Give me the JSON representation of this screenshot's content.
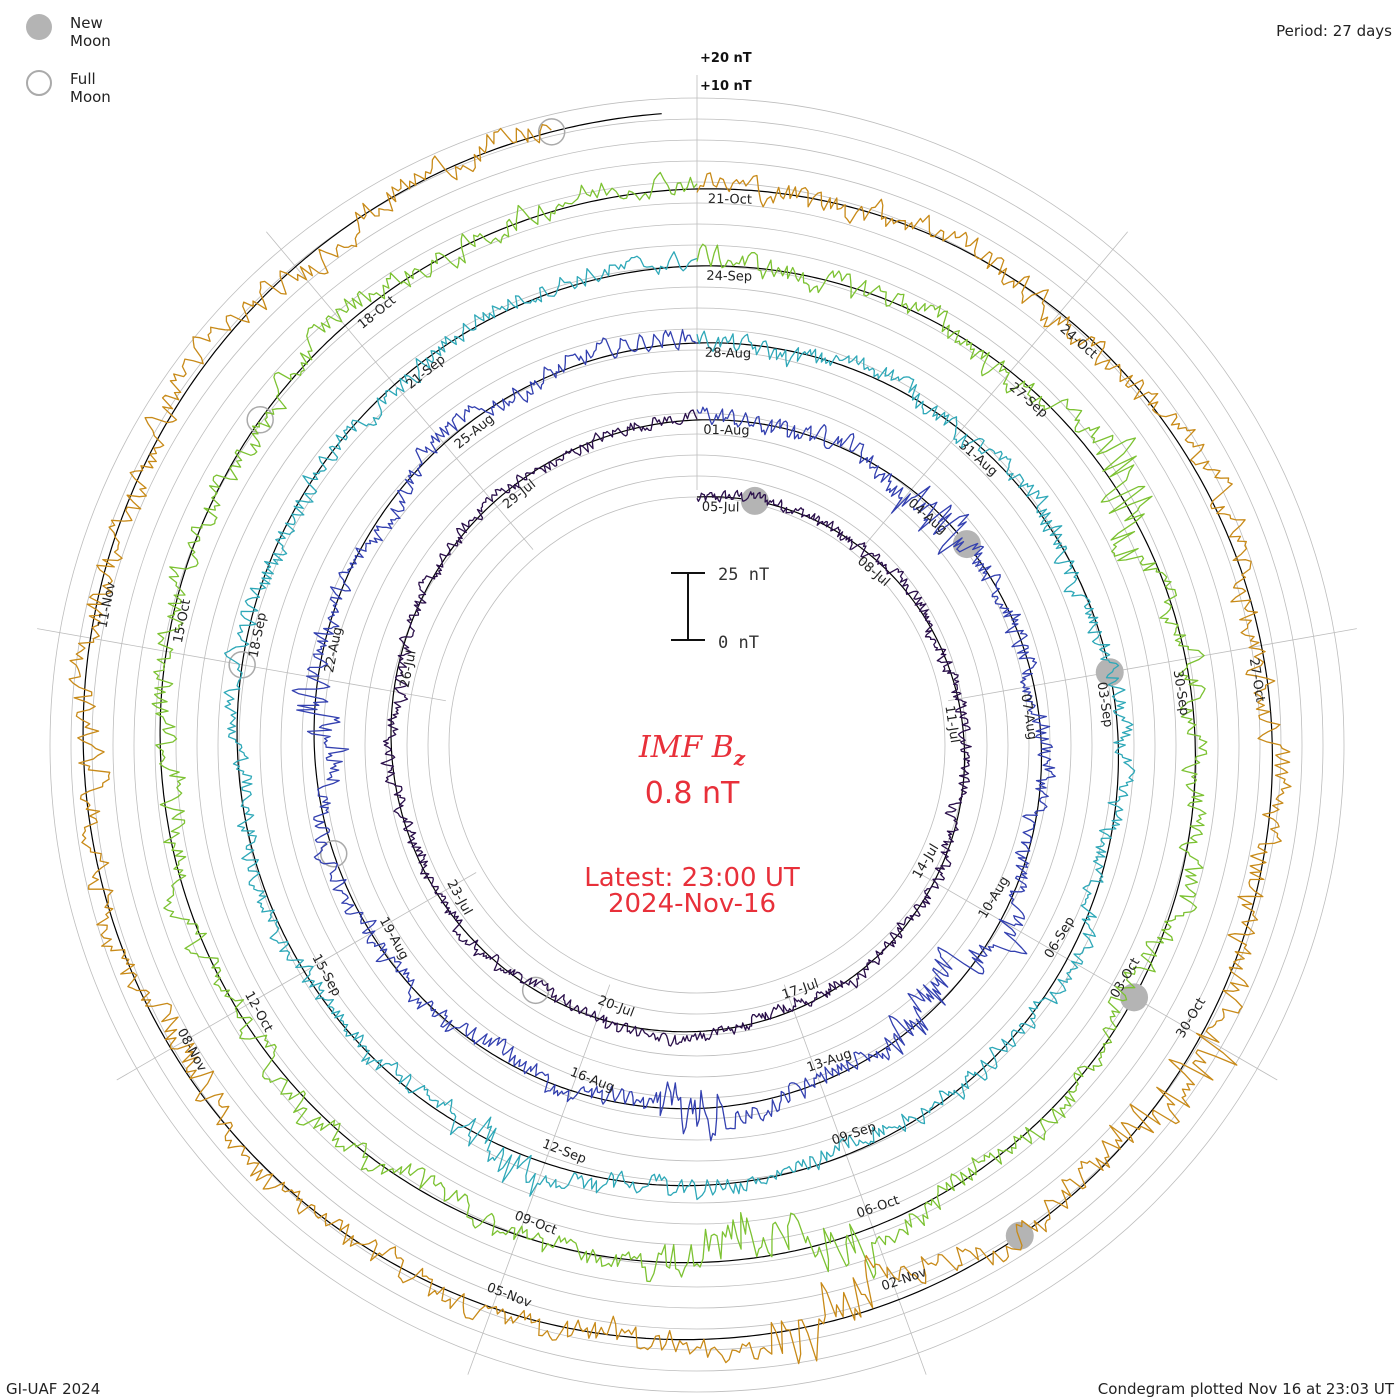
{
  "legend": {
    "new_moon": "New Moon",
    "full_moon": "Full Moon"
  },
  "period": "Period: 27 days",
  "credit": "GI-UAF 2024",
  "plotted": "Condegram plotted Nov 16 at 23:03 UT",
  "scale_labels": {
    "plus20": "+20 nT",
    "plus10": "+10 nT"
  },
  "scale_bar": {
    "top": "25 nT",
    "bottom": "0 nT"
  },
  "center": {
    "title": "IMF B",
    "subscript": "z",
    "value": "0.8 nT",
    "latest": "Latest: 23:00 UT",
    "date": "2024-Nov-16"
  },
  "colors": {
    "center_text": "#e8303a",
    "grid": "#bdbdbd",
    "baseline": "#000000",
    "moon_new": "#b4b4b4",
    "moon_full": "#aaaaaa"
  },
  "chart_data": {
    "type": "line",
    "title": "IMF Bz",
    "layout": "spiral condegram, clockwise, 27-day period, start at top",
    "units": "nT",
    "period_days": 27,
    "start_date": "2024-07-05",
    "end_date": "2024-11-16",
    "latest_value": 0.8,
    "ring_scale_labels": [
      "+20 nT",
      "+10 nT"
    ],
    "date_labels": [
      [
        "05-Jul",
        "08-Jul",
        "11-Jul",
        "14-Jul",
        "17-Jul",
        "20-Jul",
        "23-Jul",
        "26-Jul",
        "29-Jul"
      ],
      [
        "01-Aug",
        "04-Aug",
        "07-Aug",
        "10-Aug",
        "13-Aug",
        "16-Aug",
        "19-Aug",
        "22-Aug",
        "25-Aug"
      ],
      [
        "28-Aug",
        "31-Aug",
        "03-Sep",
        "06-Sep",
        "09-Sep",
        "12-Sep",
        "15-Sep",
        "18-Sep",
        "21-Sep"
      ],
      [
        "24-Sep",
        "27-Sep",
        "30-Sep",
        "03-Oct",
        "06-Oct",
        "09-Oct",
        "12-Oct",
        "15-Oct",
        "18-Oct"
      ],
      [
        "21-Oct",
        "24-Oct",
        "27-Oct",
        "30-Oct",
        "02-Nov",
        "05-Nov",
        "08-Nov",
        "11-Nov"
      ]
    ],
    "series": [
      {
        "name": "2024-07-05 to 2024-08-01",
        "color": "#2a0f4a",
        "values_daily": [
          -1.5,
          2.0,
          0.5,
          -1.0,
          3.5,
          -2.0,
          0.0,
          1.5,
          -3.0,
          2.5,
          -0.5,
          1.0,
          -2.5,
          0.5,
          4.0,
          -1.5,
          -3.5,
          2.0,
          0.0,
          -1.0,
          3.0,
          -4.0,
          1.5,
          -0.5,
          2.5,
          -2.0,
          1.0
        ]
      },
      {
        "name": "2024-08-01 to 2024-08-28",
        "color": "#3340b0",
        "values_daily": [
          2.0,
          -1.0,
          3.0,
          -4.5,
          1.5,
          0.0,
          -2.0,
          2.5,
          -3.0,
          5.0,
          -6.0,
          1.0,
          -1.5,
          4.5,
          -2.5,
          0.5,
          -3.5,
          2.0,
          -1.0,
          3.5,
          -5.0,
          1.5,
          0.0,
          -2.5,
          3.0,
          -1.0,
          2.0
        ]
      },
      {
        "name": "2024-08-28 to 2024-09-24",
        "color": "#2ea8b8",
        "values_daily": [
          1.0,
          -2.0,
          4.0,
          -1.5,
          2.5,
          -3.0,
          0.5,
          1.5,
          -2.5,
          3.5,
          -1.0,
          0.0,
          -4.0,
          2.0,
          -1.5,
          5.0,
          -3.5,
          1.0,
          -0.5,
          2.5,
          -2.0,
          3.0,
          -1.0,
          0.5,
          -3.0,
          2.0,
          1.5
        ]
      },
      {
        "name": "2024-09-24 to 2024-10-21",
        "color": "#7cc232",
        "values_daily": [
          3.0,
          -1.0,
          2.0,
          -2.5,
          4.5,
          -3.0,
          1.0,
          -0.5,
          3.5,
          -4.0,
          2.0,
          -1.5,
          5.5,
          -6.5,
          1.5,
          0.0,
          -2.0,
          3.0,
          -1.0,
          2.5,
          -3.5,
          1.0,
          0.5,
          -2.0,
          4.0,
          -1.5,
          2.0
        ]
      },
      {
        "name": "2024-10-21 to 2024-11-16",
        "color": "#c88a18",
        "values_daily": [
          1.5,
          -0.5,
          2.5,
          -2.0,
          1.0,
          3.0,
          -3.5,
          2.0,
          -1.0,
          4.5,
          -2.5,
          0.5,
          -5.5,
          3.5,
          -1.5,
          2.0,
          -0.5,
          1.5,
          -3.0,
          2.5,
          -2.0,
          1.0,
          -1.5,
          3.5,
          -2.5,
          0.8
        ]
      }
    ]
  }
}
